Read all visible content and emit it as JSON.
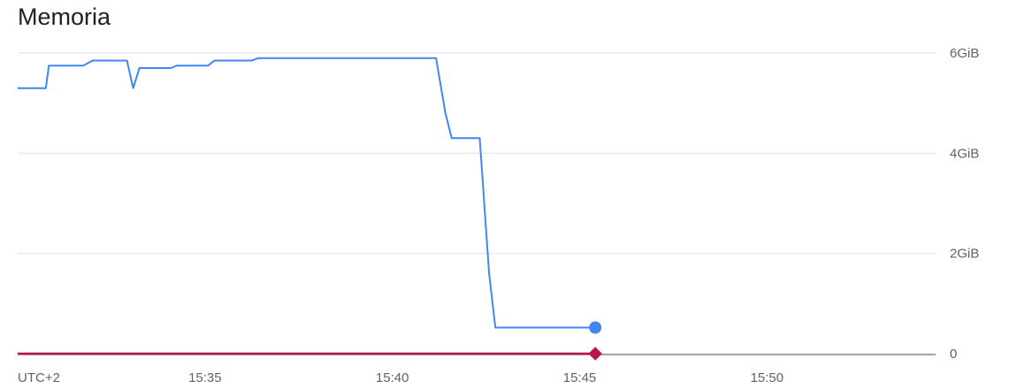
{
  "chart_data": {
    "type": "line",
    "title": "Memoria",
    "xlabel": "",
    "ylabel": "",
    "timezone_label": "UTC+2",
    "x_ticks": [
      "15:35",
      "15:40",
      "15:45",
      "15:50"
    ],
    "y_ticks": [
      "0",
      "2GiB",
      "4GiB",
      "6GiB"
    ],
    "y_tick_values": [
      0,
      2,
      4,
      6
    ],
    "ylim": [
      0,
      6
    ],
    "xlim": [
      "15:30:00",
      "15:54:30"
    ],
    "grid": true,
    "legend": "none",
    "series": [
      {
        "color": "#4285f4",
        "unit": "GiB",
        "points": [
          {
            "x": "15:30:00",
            "y": 5.3
          },
          {
            "x": "15:30:45",
            "y": 5.3
          },
          {
            "x": "15:30:50",
            "y": 5.75
          },
          {
            "x": "15:31:45",
            "y": 5.75
          },
          {
            "x": "15:32:00",
            "y": 5.85
          },
          {
            "x": "15:32:55",
            "y": 5.85
          },
          {
            "x": "15:33:05",
            "y": 5.3
          },
          {
            "x": "15:33:15",
            "y": 5.7
          },
          {
            "x": "15:34:05",
            "y": 5.7
          },
          {
            "x": "15:34:15",
            "y": 5.75
          },
          {
            "x": "15:35:05",
            "y": 5.75
          },
          {
            "x": "15:35:15",
            "y": 5.85
          },
          {
            "x": "15:36:15",
            "y": 5.85
          },
          {
            "x": "15:36:25",
            "y": 5.9
          },
          {
            "x": "15:41:10",
            "y": 5.9
          },
          {
            "x": "15:41:25",
            "y": 4.8
          },
          {
            "x": "15:41:35",
            "y": 4.3
          },
          {
            "x": "15:42:20",
            "y": 4.3
          },
          {
            "x": "15:42:35",
            "y": 1.6
          },
          {
            "x": "15:42:45",
            "y": 0.52
          },
          {
            "x": "15:45:25",
            "y": 0.52
          }
        ],
        "end_marker": "circle"
      },
      {
        "color": "#b5174f",
        "unit": "GiB",
        "points": [
          {
            "x": "15:30:00",
            "y": 0
          },
          {
            "x": "15:45:25",
            "y": 0
          }
        ],
        "end_marker": "diamond"
      }
    ]
  }
}
